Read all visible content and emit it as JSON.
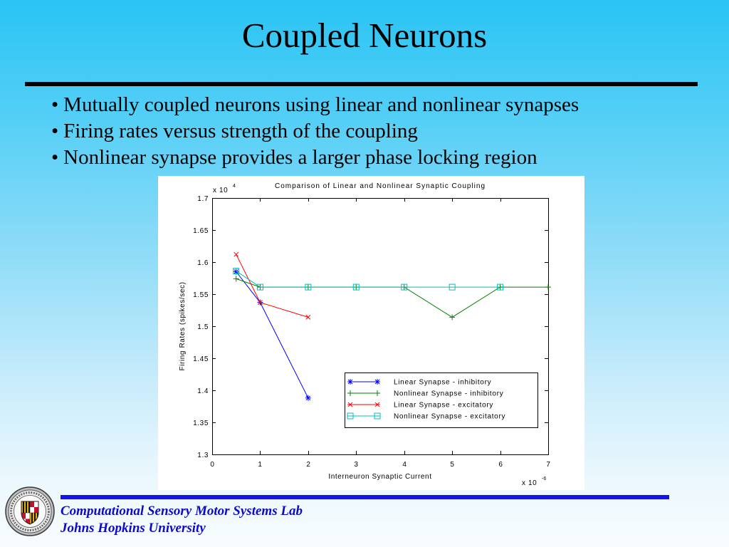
{
  "slide": {
    "title": "Coupled Neurons",
    "bullet_symbol": "•",
    "bullets": [
      "Mutually coupled neurons using linear and nonlinear synapses",
      "Firing rates versus strength of the coupling",
      "Nonlinear synapse provides a larger phase locking region"
    ],
    "logo_icon": "university-seal-icon",
    "footer": {
      "line1": "Computational Sensory Motor Systems Lab",
      "line2": "Johns Hopkins University"
    }
  },
  "colors": {
    "background_top": "#2ac4f4",
    "background_bottom": "#f8fcfe",
    "title_rule": "#000000",
    "footer_rule": "#1414e6",
    "footer_text": "#0a0ac8"
  },
  "chart_data": {
    "type": "line",
    "title": "Comparison of Linear and Nonlinear Synaptic Coupling",
    "xlabel": "Interneuron Synaptic Current",
    "ylabel": "Firing Rates (spikes/sec)",
    "x_multiplier": {
      "base": "x 10",
      "exponent": "-6"
    },
    "y_multiplier": {
      "base": "x 10",
      "exponent": "4"
    },
    "xlim": [
      0,
      7
    ],
    "ylim": [
      1.3,
      1.7
    ],
    "xticks": [
      "0",
      "1",
      "2",
      "3",
      "4",
      "5",
      "6",
      "7"
    ],
    "yticks": [
      "1.3",
      "1.35",
      "1.4",
      "1.45",
      "1.5",
      "1.55",
      "1.6",
      "1.65",
      "1.7"
    ],
    "grid": false,
    "legend_position": "bottom-right",
    "series": [
      {
        "name": "Linear Synapse - inhibitory",
        "color": "#0000ff",
        "marker": "asterisk",
        "x": [
          0.5,
          1,
          2
        ],
        "y": [
          1.585,
          1.537,
          1.388
        ]
      },
      {
        "name": "Nonlinear Synapse - inhibitory",
        "color": "#008000",
        "marker": "plus",
        "x": [
          0.5,
          1,
          2,
          3,
          4,
          5,
          6,
          7
        ],
        "y": [
          1.574,
          1.561,
          1.561,
          1.561,
          1.561,
          1.514,
          1.561,
          1.561
        ]
      },
      {
        "name": "Linear Synapse - excitatory",
        "color": "#ff0000",
        "marker": "x",
        "x": [
          0.5,
          1,
          2
        ],
        "y": [
          1.612,
          1.537,
          1.514
        ]
      },
      {
        "name": "Nonlinear Synapse - excitatory",
        "color": "#00bfbf",
        "marker": "square",
        "x": [
          0.5,
          1,
          2,
          3,
          4,
          5,
          6
        ],
        "y": [
          1.586,
          1.561,
          1.561,
          1.561,
          1.561,
          1.561,
          1.561
        ]
      }
    ]
  }
}
